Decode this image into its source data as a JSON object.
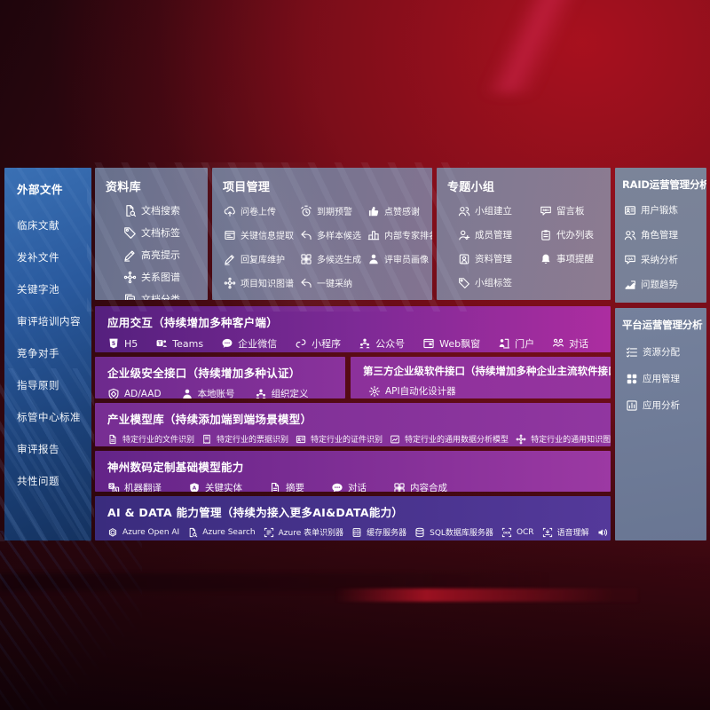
{
  "colors": {
    "background_red": "#7a0e1b",
    "sidebar_blue": "#2b5ea6",
    "panel_slate": "#737d96",
    "row_purple": "#7c2f96",
    "row_magenta": "#a82c9e",
    "row_indigo": "#3f2f85"
  },
  "sidebar": {
    "title": "外部文件",
    "items": [
      "临床文献",
      "发补文件",
      "关键字池",
      "审评培训内容",
      "竞争对手",
      "指导原则",
      "标管中心标准",
      "审评报告",
      "共性问题"
    ]
  },
  "panels": {
    "db": {
      "title": "资料库",
      "items": [
        {
          "icon": "doc-search",
          "label": "文档搜索"
        },
        {
          "icon": "tag",
          "label": "文档标签"
        },
        {
          "icon": "pencil",
          "label": "高亮提示"
        },
        {
          "icon": "network",
          "label": "关系图谱"
        },
        {
          "icon": "docs",
          "label": "文档分类"
        }
      ]
    },
    "pm": {
      "title": "项目管理",
      "items": [
        {
          "icon": "cloud-up",
          "label": "问卷上传"
        },
        {
          "icon": "alarm",
          "label": "到期预警"
        },
        {
          "icon": "thumb",
          "label": "点赞感谢"
        },
        {
          "icon": "frame",
          "label": "关键信息提取"
        },
        {
          "icon": "reply",
          "label": "多样本候选"
        },
        {
          "icon": "rank",
          "label": "内部专家排名"
        },
        {
          "icon": "pencil",
          "label": "回复库维护"
        },
        {
          "icon": "grid-plus",
          "label": "多候选生成"
        },
        {
          "icon": "person",
          "label": "评审员画像"
        },
        {
          "icon": "network",
          "label": "项目知识图谱"
        },
        {
          "icon": "reply",
          "label": "一键采纳"
        }
      ]
    },
    "group": {
      "title": "专题小组",
      "items": [
        {
          "icon": "people",
          "label": "小组建立"
        },
        {
          "icon": "bbs",
          "label": "留言板"
        },
        {
          "icon": "person-add",
          "label": "成员管理"
        },
        {
          "icon": "clipboard",
          "label": "代办列表"
        },
        {
          "icon": "album",
          "label": "资料管理"
        },
        {
          "icon": "bell",
          "label": "事项提醒"
        },
        {
          "icon": "tag",
          "label": "小组标签"
        }
      ]
    },
    "raid": {
      "title": "RAID运营管理分析",
      "items": [
        {
          "icon": "idcard",
          "label": "用户锻炼"
        },
        {
          "icon": "people",
          "label": "角色管理"
        },
        {
          "icon": "chatqa",
          "label": "采纳分析"
        },
        {
          "icon": "trend",
          "label": "问题趋势"
        }
      ]
    },
    "platform": {
      "title": "平台运营管理分析",
      "items": [
        {
          "icon": "listcheck",
          "label": "资源分配"
        },
        {
          "icon": "appgrid",
          "label": "应用管理"
        },
        {
          "icon": "chartbox",
          "label": "应用分析"
        }
      ]
    }
  },
  "rows": {
    "interact": {
      "title": "应用交互（持续增加多种客户端）",
      "items": [
        {
          "icon": "h5",
          "label": "H5"
        },
        {
          "icon": "teams",
          "label": "Teams"
        },
        {
          "icon": "wecom",
          "label": "企业微信"
        },
        {
          "icon": "mini",
          "label": "小程序"
        },
        {
          "icon": "org",
          "label": "公众号"
        },
        {
          "icon": "window",
          "label": "Web飘窗"
        },
        {
          "icon": "portal",
          "label": "门户"
        },
        {
          "icon": "dialog",
          "label": "对话"
        }
      ]
    },
    "security": {
      "title": "企业级安全接口（持续增加多种认证）",
      "items": [
        {
          "icon": "adshield",
          "label": "AD/AAD"
        },
        {
          "icon": "person",
          "label": "本地账号"
        },
        {
          "icon": "org",
          "label": "组织定义"
        }
      ]
    },
    "thirdparty": {
      "title": "第三方企业级软件接口（持续增加多种企业主流软件接口）",
      "items": [
        {
          "icon": "gear",
          "label": "API自动化设计器"
        }
      ]
    },
    "industry": {
      "title": "产业模型库（持续添加端到端场景模型）",
      "items": [
        {
          "icon": "doc",
          "label": "特定行业的文件识别"
        },
        {
          "icon": "receipt",
          "label": "特定行业的票据识别"
        },
        {
          "icon": "idcard",
          "label": "特定行业的证件识别"
        },
        {
          "icon": "datachart",
          "label": "特定行业的通用数据分析模型"
        },
        {
          "icon": "network",
          "label": "特定行业的通用知识图谱模型"
        }
      ]
    },
    "digital": {
      "title": "神州数码定制基础模型能力",
      "items": [
        {
          "icon": "translate",
          "label": "机器翻译"
        },
        {
          "icon": "shieldA",
          "label": "关键实体"
        },
        {
          "icon": "doc",
          "label": "摘要"
        },
        {
          "icon": "chat",
          "label": "对话"
        },
        {
          "icon": "grid-plus",
          "label": "内容合成"
        }
      ]
    },
    "aidata": {
      "title": "AI & DATA 能力管理（持续为接入更多AI&DATA能力）",
      "items": [
        {
          "icon": "openai",
          "label": "Azure Open AI"
        },
        {
          "icon": "doc-search",
          "label": "Azure Search"
        },
        {
          "icon": "form",
          "label": "Azure 表单识别器"
        },
        {
          "icon": "server",
          "label": "缓存服务器"
        },
        {
          "icon": "db",
          "label": "SQL数据库服务器"
        },
        {
          "icon": "ocr",
          "label": "OCR"
        },
        {
          "icon": "speech",
          "label": "语音理解"
        },
        {
          "icon": "tts",
          "label": "TTS"
        }
      ]
    }
  }
}
